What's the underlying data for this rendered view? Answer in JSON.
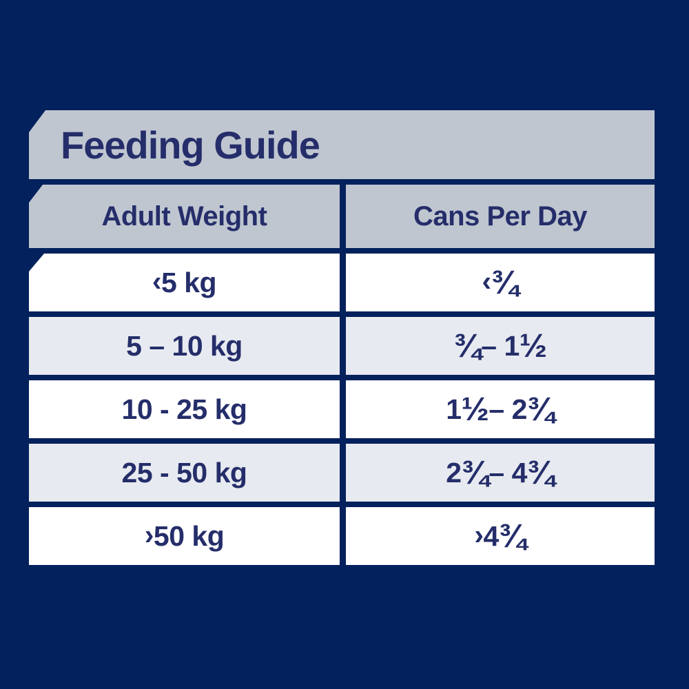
{
  "chart_data": {
    "type": "table",
    "title": "Feeding Guide",
    "columns": [
      "Adult Weight",
      "Cans Per Day"
    ],
    "rows": [
      [
        "‹ 5 kg",
        "‹ ¾"
      ],
      [
        "5 – 10 kg",
        "¾ – 1 ½"
      ],
      [
        "10 - 25 kg",
        "1 ½ – 2 ¾"
      ],
      [
        "25 - 50 kg",
        "2 ¾ – 4 ¾"
      ],
      [
        "›50 kg",
        "› 4 ¾"
      ]
    ]
  },
  "colors": {
    "background_navy": "#03215c",
    "band_gray": "#bfc6d0",
    "row_alt_gray": "#e7eaf0",
    "row_white": "#ffffff",
    "text_navy": "#252e6a"
  }
}
